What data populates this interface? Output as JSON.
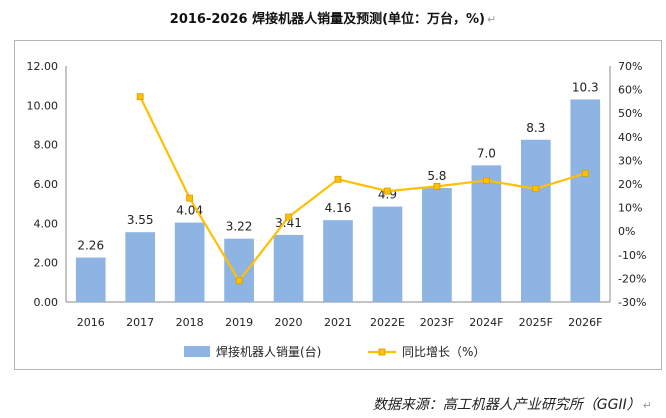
{
  "title": "2016-2026 焊接机器人销量及预测(单位：万台，%)",
  "title_mark": "↵",
  "source": "数据来源：高工机器人产业研究所（GGII）",
  "source_mark": "↵",
  "chart_data": {
    "type": "bar",
    "categories": [
      "2016",
      "2017",
      "2018",
      "2019",
      "2020",
      "2021",
      "2022E",
      "2023F",
      "2024F",
      "2025F",
      "2026F"
    ],
    "series": [
      {
        "name": "焊接机器人销量(台)",
        "type": "bar",
        "axis": "left",
        "color": "#8eb4e3",
        "values": [
          2.26,
          3.55,
          4.04,
          3.22,
          3.41,
          4.16,
          4.85,
          5.8,
          6.95,
          8.25,
          10.3
        ],
        "labels": [
          "2.26",
          "3.55",
          "4.04",
          "3.22",
          "3.41",
          "4.16",
          "4.9",
          "5.8",
          "7.0",
          "8.3",
          "10.3"
        ]
      },
      {
        "name": "同比增长（%）",
        "type": "line",
        "axis": "right",
        "color": "#ffc000",
        "values": [
          null,
          57,
          14,
          -21,
          6,
          22,
          17,
          19,
          21.5,
          18,
          24.5
        ]
      }
    ],
    "y_left": {
      "min": 0,
      "max": 12,
      "step": 2,
      "tick_labels": [
        "0.00",
        "2.00",
        "4.00",
        "6.00",
        "8.00",
        "10.00",
        "12.00"
      ]
    },
    "y_right": {
      "min": -30,
      "max": 70,
      "step": 10,
      "tick_labels": [
        "-30%",
        "-20%",
        "-10%",
        "0%",
        "10%",
        "20%",
        "30%",
        "40%",
        "50%",
        "60%",
        "70%"
      ]
    },
    "legend_position": "bottom",
    "grid": false
  }
}
